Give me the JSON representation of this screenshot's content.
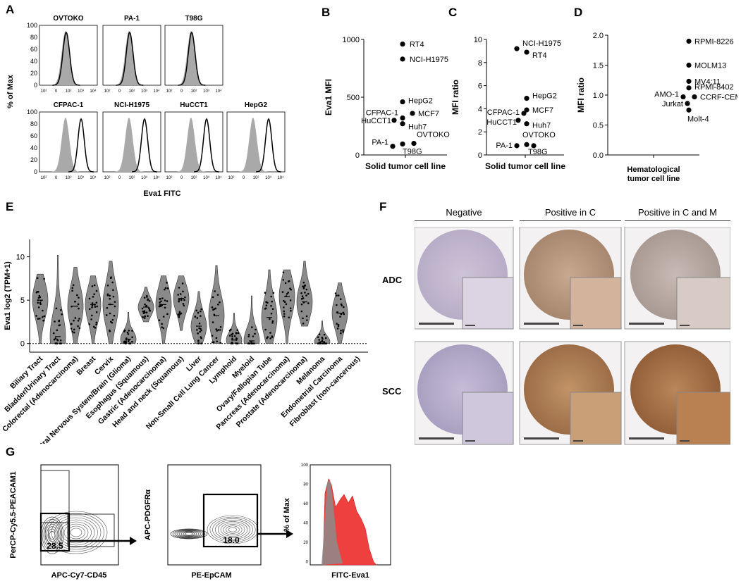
{
  "panels": {
    "A": {
      "letter": "A",
      "y_label": "% of Max",
      "x_label": "Eva1 FITC",
      "y_ticks": [
        "100",
        "80",
        "60",
        "40",
        "20",
        "0"
      ],
      "x_ticks": [
        "10²",
        "0",
        "10²",
        "10³",
        "10⁴"
      ],
      "cells": [
        "OVTOKO",
        "PA-1",
        "T98G",
        "CFPAC-1",
        "NCI-H1975",
        "HuCCT1",
        "HepG2"
      ]
    },
    "B": {
      "letter": "B",
      "ylabel": "Eva1 MFI",
      "xlabel": "Solid tumor cell line",
      "y_ticks": [
        "1000",
        "500",
        "0"
      ]
    },
    "C": {
      "letter": "C",
      "ylabel": "MFI ratio",
      "xlabel": "Solid tumor cell line",
      "y_ticks": [
        "10",
        "8",
        "6",
        "4",
        "2",
        "0"
      ]
    },
    "D": {
      "letter": "D",
      "ylabel": "MFI ratio",
      "xlabel_line1": "Hematological",
      "xlabel_line2": "tumor cell line",
      "y_ticks": [
        "2.0",
        "1.5",
        "1.0",
        "0.5",
        "0.0"
      ]
    },
    "E": {
      "letter": "E",
      "ylabel": "Eva1 log2 (TPM+1)",
      "y_ticks": [
        "10",
        "5",
        "0"
      ]
    },
    "F": {
      "letter": "F",
      "col_headers": [
        "Negative",
        "Positive in C",
        "Positive in C and M"
      ],
      "row_labels": [
        "ADC",
        "SCC"
      ]
    },
    "G": {
      "letter": "G",
      "plot1": {
        "ylabel": "PerCP-Cy5.5-PEACAM1",
        "xlabel": "APC-Cy7-CD45",
        "gate_value": "28.5"
      },
      "plot2": {
        "ylabel": "APC-PDGFRα",
        "xlabel": "PE-EpCAM",
        "gate_value": "18.0"
      },
      "plot3": {
        "ylabel": "% of Max",
        "xlabel": "FITC-Eva1"
      }
    }
  },
  "chart_data": [
    {
      "type": "scatter",
      "panel": "B",
      "ylabel": "Eva1 MFI",
      "xlabel": "Solid tumor cell line",
      "ylim": [
        0,
        1000
      ],
      "points": [
        {
          "label": "RT4",
          "value": 960
        },
        {
          "label": "NCI-H1975",
          "value": 830
        },
        {
          "label": "HepG2",
          "value": 460
        },
        {
          "label": "MCF7",
          "value": 360
        },
        {
          "label": "CFPAC-1",
          "value": 320
        },
        {
          "label": "HuCCT1",
          "value": 300
        },
        {
          "label": "Huh7",
          "value": 270
        },
        {
          "label": "OVTOKO",
          "value": 100
        },
        {
          "label": "PA-1",
          "value": 75
        },
        {
          "label": "T98G",
          "value": 95
        }
      ]
    },
    {
      "type": "scatter",
      "panel": "C",
      "ylabel": "MFI ratio",
      "xlabel": "Solid tumor cell line",
      "ylim": [
        0,
        10
      ],
      "points": [
        {
          "label": "NCI-H1975",
          "value": 9.2
        },
        {
          "label": "RT4",
          "value": 8.9
        },
        {
          "label": "HepG2",
          "value": 4.9
        },
        {
          "label": "MCF7",
          "value": 3.9
        },
        {
          "label": "CFPAC-1",
          "value": 3.6
        },
        {
          "label": "HuCCT1",
          "value": 3.0
        },
        {
          "label": "Huh7",
          "value": 2.7
        },
        {
          "label": "OVTOKO",
          "value": 0.9
        },
        {
          "label": "PA-1",
          "value": 0.8
        },
        {
          "label": "T98G",
          "value": 0.8
        }
      ]
    },
    {
      "type": "scatter",
      "panel": "D",
      "ylabel": "MFI ratio",
      "xlabel": "Hematological tumor cell line",
      "ylim": [
        0,
        2.0
      ],
      "points": [
        {
          "label": "RPMI-8226",
          "value": 1.9
        },
        {
          "label": "MOLM13",
          "value": 1.5
        },
        {
          "label": "MV4;11",
          "value": 1.23
        },
        {
          "label": "RPMI-8402",
          "value": 1.12
        },
        {
          "label": "AMO-1",
          "value": 0.97
        },
        {
          "label": "CCRF-CEM",
          "value": 0.97
        },
        {
          "label": "Jurkat",
          "value": 0.86
        },
        {
          "label": "Molt-4",
          "value": 0.75
        }
      ]
    },
    {
      "type": "violin",
      "panel": "E",
      "ylabel": "Eva1 log2 (TPM+1)",
      "ylim": [
        -1,
        12
      ],
      "categories": [
        {
          "name": "Biliary Tract",
          "median": 5.0,
          "min": 0,
          "max": 8.0
        },
        {
          "name": "Bladder/Urinary Tract",
          "median": 0.8,
          "min": 0,
          "max": 10.2
        },
        {
          "name": "Colorectal (Adenocarcinoma)",
          "median": 4.3,
          "min": 0,
          "max": 8.8
        },
        {
          "name": "Breast",
          "median": 4.5,
          "min": 0,
          "max": 7.8
        },
        {
          "name": "Cervix",
          "median": 4.5,
          "min": 0,
          "max": 9.5
        },
        {
          "name": "Central Nervous System/Brain (Glioma)",
          "median": 0.5,
          "min": 0,
          "max": 3.6
        },
        {
          "name": "Esophagus (Squamous)",
          "median": 4.2,
          "min": 2.5,
          "max": 6.5
        },
        {
          "name": "Gastric (Adenocarcinoma)",
          "median": 4.5,
          "min": 0,
          "max": 7.8
        },
        {
          "name": "Head and neck (Squamous)",
          "median": 5.2,
          "min": 1.5,
          "max": 7.8
        },
        {
          "name": "Liver",
          "median": 2.0,
          "min": 0,
          "max": 6.0
        },
        {
          "name": "Non-Small Cell Lung Cancer",
          "median": 3.2,
          "min": 0,
          "max": 9.0
        },
        {
          "name": "Lymphoid",
          "median": 0.4,
          "min": 0,
          "max": 3.5
        },
        {
          "name": "Myeloid",
          "median": 0.3,
          "min": 0,
          "max": 5.5
        },
        {
          "name": "Ovary/Fallopian Tube",
          "median": 3.0,
          "min": 0,
          "max": 8.5
        },
        {
          "name": "Pancreas (Adenocarcinoma)",
          "median": 5.4,
          "min": 0,
          "max": 8.5
        },
        {
          "name": "Prostate (Adenocarcinoma)",
          "median": 4.8,
          "min": 2.0,
          "max": 9.5
        },
        {
          "name": "Melanoma",
          "median": 0.2,
          "min": 0,
          "max": 2.6
        },
        {
          "name": "Endometrial Carcinoma",
          "median": 3.5,
          "min": 0,
          "max": 7.0
        },
        {
          "name": "Fibroblast (non-cancerous)",
          "median": null,
          "min": null,
          "max": null
        }
      ]
    }
  ]
}
